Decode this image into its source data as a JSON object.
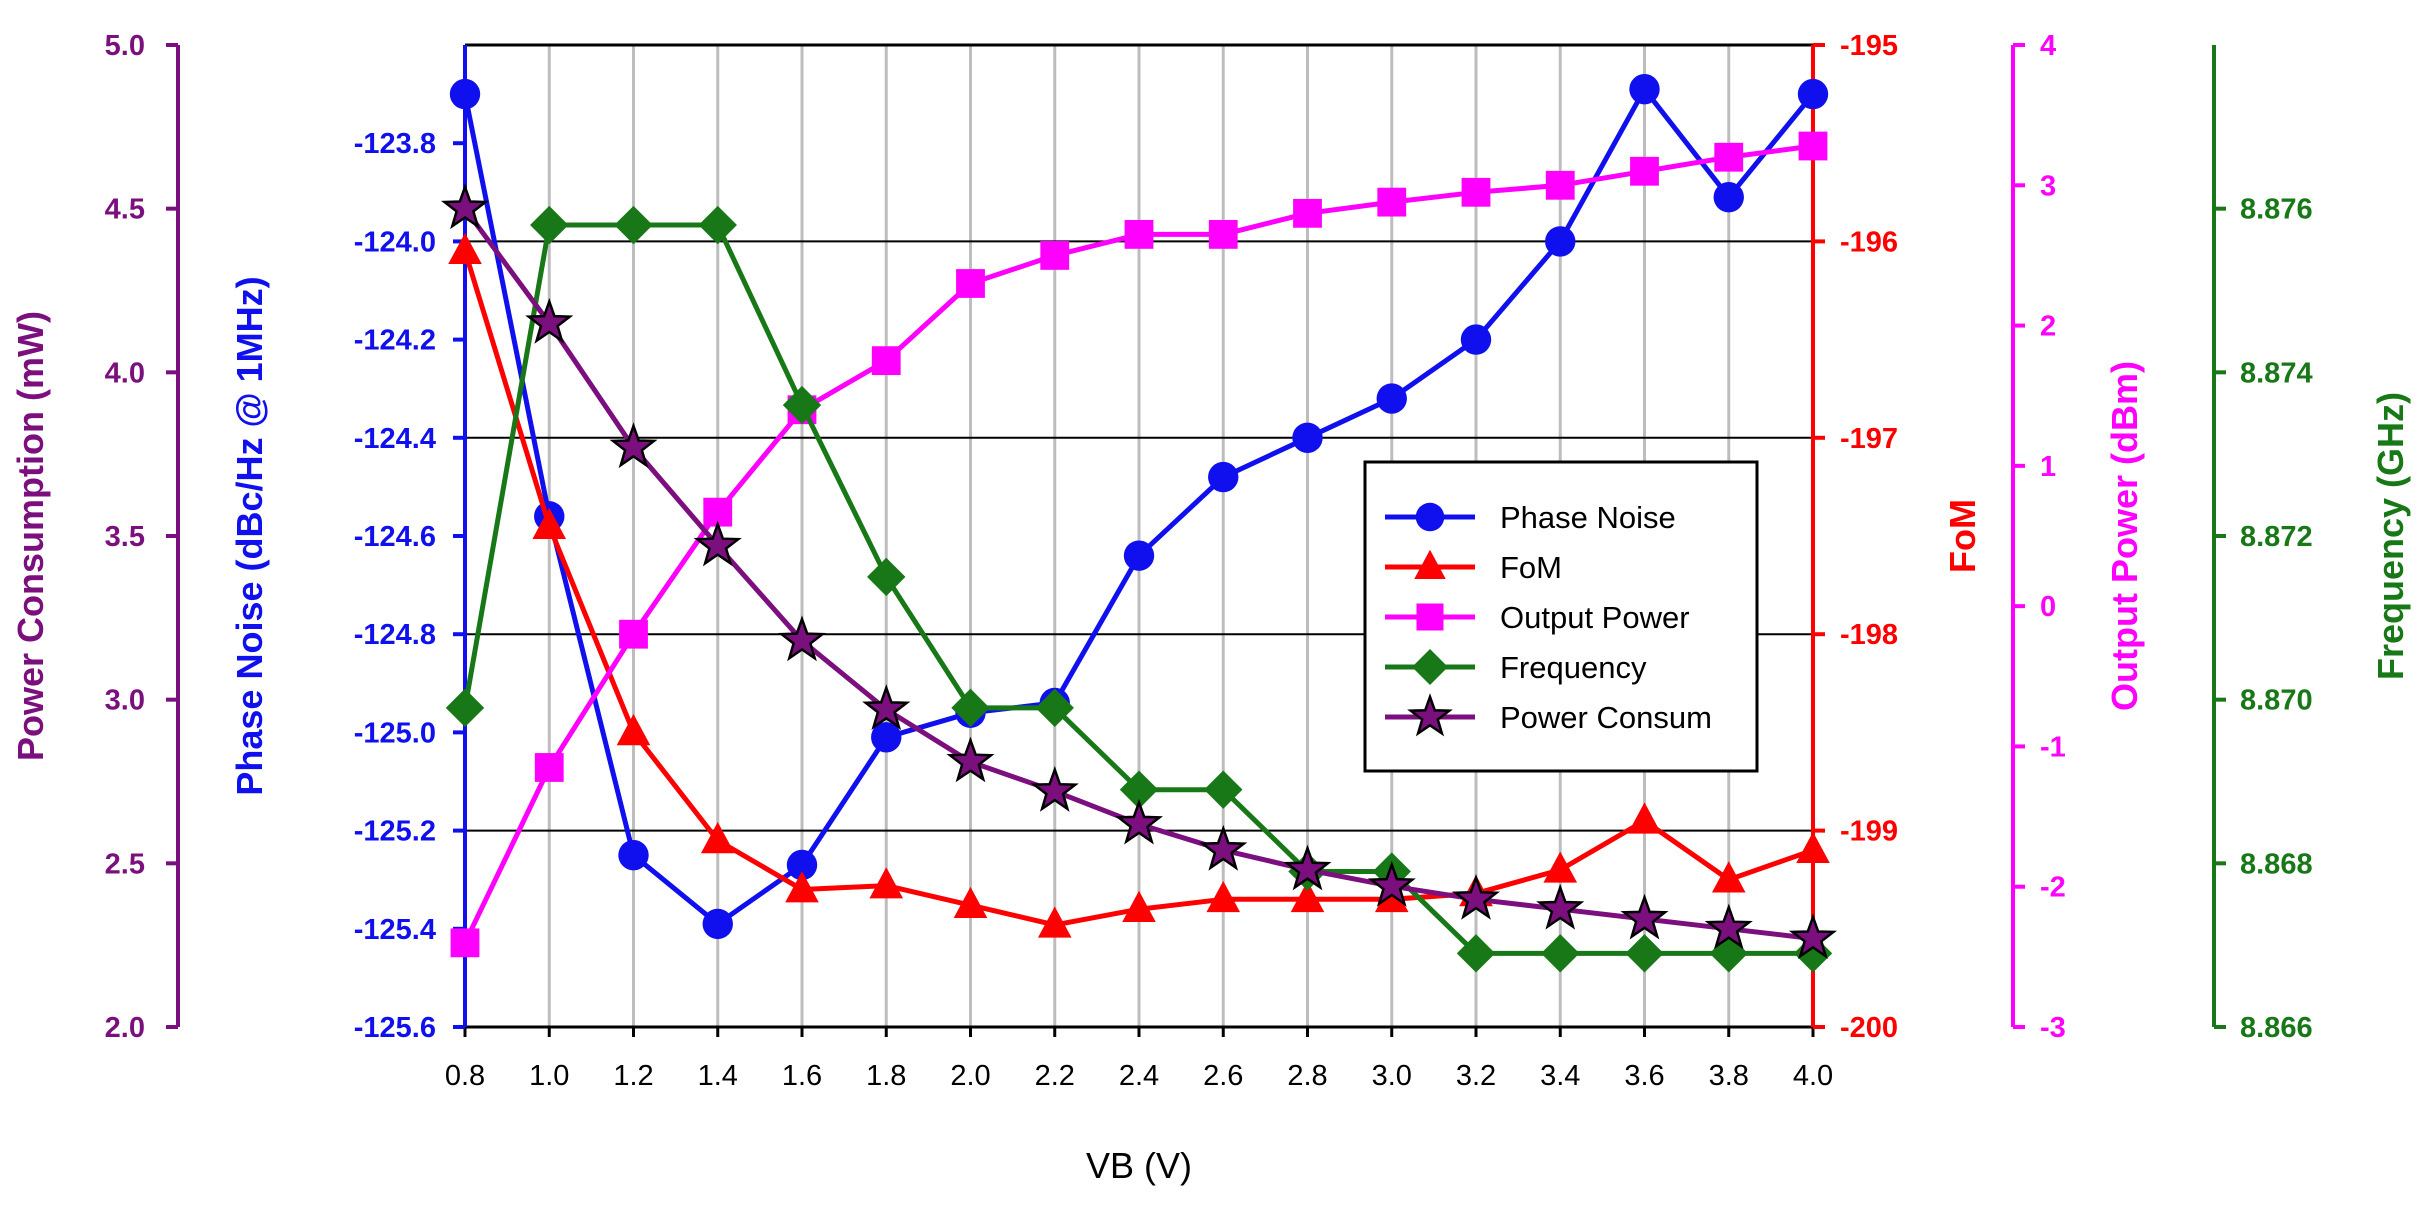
{
  "chart_data": {
    "type": "line",
    "xlabel": "VB (V)",
    "x": [
      0.8,
      1.0,
      1.2,
      1.4,
      1.6,
      1.8,
      2.0,
      2.2,
      2.4,
      2.6,
      2.8,
      3.0,
      3.2,
      3.4,
      3.6,
      3.8,
      4.0
    ],
    "x_ticks": [
      "0.8",
      "1.0",
      "1.2",
      "1.4",
      "1.6",
      "1.8",
      "2.0",
      "2.2",
      "2.4",
      "2.6",
      "2.8",
      "3.0",
      "3.2",
      "3.4",
      "3.6",
      "3.8",
      "4.0"
    ],
    "axes": {
      "power": {
        "label": "Power Consumption (mW)",
        "min": 2.0,
        "max": 5.0,
        "ticks": [
          "2.0",
          "2.5",
          "3.0",
          "3.5",
          "4.0",
          "4.5",
          "5.0"
        ],
        "color": "#7B0F7E"
      },
      "phase_noise": {
        "label": "Phase Noise (dBc/Hz @ 1MHz)",
        "min": -125.6,
        "max": -123.6,
        "ticks": [
          "-125.6",
          "-125.4",
          "-125.2",
          "-125.0",
          "-124.8",
          "-124.6",
          "-124.4",
          "-124.2",
          "-124.0",
          "-123.8"
        ],
        "color": "#1010EE"
      },
      "fom": {
        "label": "FoM",
        "min": -200,
        "max": -195,
        "ticks": [
          "-200",
          "-199",
          "-198",
          "-197",
          "-196",
          "-195"
        ],
        "color": "#FF0000"
      },
      "output_power": {
        "label": "Output Power (dBm)",
        "min": -3,
        "max": 4,
        "ticks": [
          "-3",
          "-2",
          "-1",
          "0",
          "1",
          "2",
          "3",
          "4"
        ],
        "color": "#FF00FF"
      },
      "frequency": {
        "label": "Frequency (GHz)",
        "min": 8.866,
        "max": 8.878,
        "ticks": [
          "8.866",
          "8.868",
          "8.870",
          "8.872",
          "8.874",
          "8.876"
        ],
        "color": "#187818"
      }
    },
    "series": [
      {
        "name": "Phase Noise",
        "axis": "phase_noise",
        "marker": "circle",
        "color": "#1010EE",
        "values": [
          -123.7,
          -124.56,
          -125.25,
          -125.39,
          -125.27,
          -125.01,
          -124.96,
          -124.94,
          -124.64,
          -124.48,
          -124.4,
          -124.32,
          -124.2,
          -124.0,
          -123.69,
          -123.91,
          -123.7
        ]
      },
      {
        "name": "FoM",
        "axis": "fom",
        "marker": "triangle",
        "color": "#FF0000",
        "values": [
          -196.05,
          -197.45,
          -198.5,
          -199.05,
          -199.3,
          -199.28,
          -199.38,
          -199.48,
          -199.4,
          -199.35,
          -199.35,
          -199.35,
          -199.32,
          -199.2,
          -198.95,
          -199.25,
          -199.1
        ]
      },
      {
        "name": "Output Power",
        "axis": "output_power",
        "marker": "square",
        "color": "#FF00FF",
        "values": [
          -2.4,
          -1.15,
          -0.2,
          0.67,
          1.4,
          1.75,
          2.3,
          2.5,
          2.65,
          2.65,
          2.8,
          2.88,
          2.95,
          3.0,
          3.1,
          3.2,
          3.28
        ]
      },
      {
        "name": "Frequency",
        "axis": "frequency",
        "marker": "diamond",
        "color": "#187818",
        "values": [
          8.8699,
          8.8758,
          8.8758,
          8.8758,
          8.8736,
          8.8715,
          8.8699,
          8.8699,
          8.8689,
          8.8689,
          8.8679,
          8.8679,
          8.8669,
          8.8669,
          8.8669,
          8.8669,
          8.8669
        ]
      },
      {
        "name": "Power Consum",
        "axis": "power",
        "marker": "star",
        "color": "#7B0F7E",
        "values": [
          4.5,
          4.15,
          3.77,
          3.47,
          3.18,
          2.97,
          2.81,
          2.72,
          2.62,
          2.54,
          2.48,
          2.43,
          2.39,
          2.36,
          2.33,
          2.3,
          2.27
        ]
      }
    ],
    "grid": true,
    "legend": "center-right"
  }
}
